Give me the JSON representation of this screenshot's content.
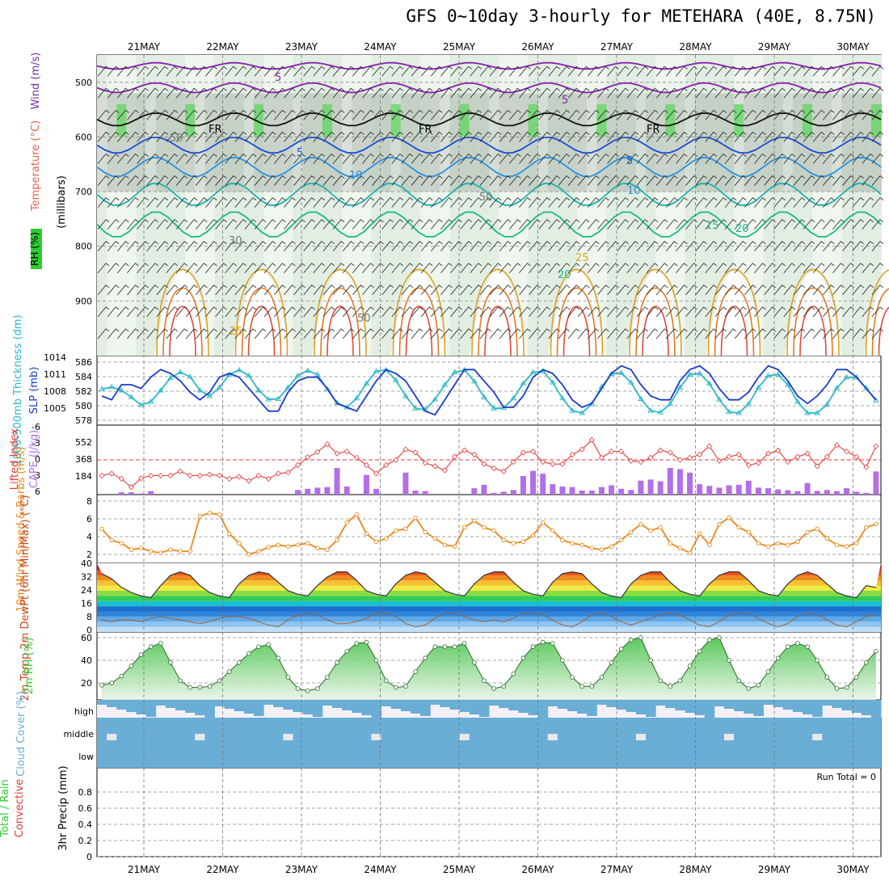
{
  "title": "GFS 0~10day 3-hourly for METEHARA (40E, 8.75N)",
  "colors": {
    "rh": "#2ecc2e",
    "temperature": "#e8624a",
    "wind": "#7a2fa8",
    "slp": "#1a3cc8",
    "thickness": "#2fb8c8",
    "lifted_index": "#e23b3b",
    "cape": "#b46ee6",
    "wind10": "#e88a1a",
    "cloud": "#6aaed6",
    "rain": "#2ecc2e",
    "convective": "#e23b3b"
  },
  "chart_data": [
    {
      "id": "vertical",
      "type": "heatmap",
      "x": [
        "21MAY",
        "22MAY",
        "23MAY",
        "24MAY",
        "25MAY",
        "26MAY",
        "27MAY",
        "28MAY",
        "29MAY",
        "30MAY"
      ],
      "yticks": [
        "500",
        "600",
        "700",
        "800",
        "900"
      ],
      "ylim": [
        1000,
        450
      ],
      "ylabel_parts": [
        "RH (%)",
        "Temperature (°C)",
        "Wind (m/s)",
        "(millibars)"
      ],
      "contour_labels": [
        "5",
        "5",
        "FR",
        "FR",
        "FR",
        "5",
        "5",
        "10",
        "10",
        "50",
        "50",
        "15",
        "20",
        "25",
        "20",
        "25",
        "30",
        "50"
      ],
      "freezing_level_label": "FR"
    },
    {
      "id": "slp_thickness",
      "type": "line",
      "y_left_ticks": [
        "586",
        "584",
        "582",
        "580",
        "578"
      ],
      "y_right_ticks": [
        "1014",
        "1011",
        "1008",
        "1005"
      ],
      "ylabel_left": "1000-500mb Thickness (dm)",
      "ylabel_right": "SLP (mb)",
      "series": [
        {
          "name": "SLP",
          "values": [
            1006,
            1005,
            1009,
            1009,
            1008,
            1011,
            1013,
            1012,
            1010,
            1007,
            1005,
            1007,
            1011,
            1012,
            1011,
            1008,
            1005,
            1002,
            1002,
            1007,
            1010,
            1011,
            1011,
            1008,
            1004,
            1003,
            1002,
            1006,
            1010,
            1013,
            1012,
            1010,
            1006,
            1002,
            1001,
            1005,
            1009,
            1013,
            1013,
            1010,
            1007,
            1003,
            1003,
            1006,
            1011,
            1013,
            1012,
            1009,
            1005,
            1003,
            1004,
            1008,
            1012,
            1014,
            1013,
            1009,
            1006,
            1005,
            1005,
            1010,
            1013,
            1014,
            1012,
            1008,
            1005,
            1005,
            1007,
            1011,
            1014,
            1013,
            1010,
            1006,
            1004,
            1006,
            1009,
            1013,
            1013,
            1011,
            1008,
            1005
          ]
        },
        {
          "name": "Thickness",
          "values": [
            582.2,
            582.6,
            582.0,
            580.8,
            579.4,
            580.0,
            582.0,
            584.2,
            585.2,
            584.4,
            582.0,
            581.0,
            582.5,
            584.8,
            585.6,
            584.6,
            582.0,
            580.4,
            580.5,
            582.5,
            584.6,
            585.5,
            584.8,
            582.2,
            579.8,
            579.0,
            580.6,
            583.2,
            585.4,
            585.6,
            583.8,
            581.0,
            578.8,
            578.6,
            580.4,
            583.0,
            585.2,
            585.6,
            583.6,
            580.8,
            578.8,
            578.9,
            580.6,
            583.2,
            585.2,
            585.4,
            583.4,
            580.6,
            578.4,
            578.0,
            579.6,
            582.6,
            584.9,
            585.1,
            583.4,
            580.5,
            578.4,
            578.1,
            579.6,
            582.5,
            584.8,
            585.0,
            583.2,
            580.4,
            578.2,
            578.0,
            579.6,
            582.5,
            584.6,
            584.8,
            583.0,
            580.0,
            578.0,
            578.0,
            579.5,
            582.4,
            584.3,
            584.3,
            582.4,
            580.2
          ]
        }
      ]
    },
    {
      "id": "li_cape",
      "type": "bar",
      "y_left_ticks": [
        "-6",
        "-3",
        "0",
        "3",
        "6"
      ],
      "y_right_ticks": [
        "552",
        "368",
        "184"
      ],
      "ylabel_left": "Lifted Index",
      "ylabel_right": "CAPE (J/kg)",
      "series": [
        {
          "name": "Lifted Index",
          "values": [
            3,
            2.6,
            3.6,
            5.2,
            3.5,
            3,
            3,
            3,
            2.2,
            3,
            3,
            2.8,
            3,
            3.6,
            3.2,
            4,
            3,
            3.6,
            2.6,
            2.4,
            1,
            -0.5,
            -1.5,
            -3,
            -1.2,
            -1.6,
            -0.4,
            1,
            2.6,
            1,
            0,
            -2,
            -1.4,
            0.6,
            1.2,
            2,
            -0.6,
            -1.8,
            -1,
            0.8,
            1.6,
            2.2,
            0.4,
            -1.4,
            -1.6,
            0.4,
            0.8,
            0.8,
            -1,
            -2,
            -3.8,
            -0.4,
            -1.6,
            -1.6,
            0.2,
            0.4,
            -0.4,
            -1.8,
            -1.4,
            0,
            -0.4,
            -1,
            -2.6,
            0.2,
            -0.6,
            -1,
            1,
            0.6,
            -1.2,
            -1.8,
            0.4,
            -0.6,
            -1.2,
            1.2,
            -0.6,
            -2.8,
            -1.6,
            -0.6,
            1.4,
            -2.6
          ]
        },
        {
          "name": "CAPE",
          "values": [
            0,
            0,
            20,
            20,
            10,
            30,
            0,
            0,
            0,
            0,
            0,
            0,
            0,
            0,
            0,
            0,
            0,
            0,
            0,
            0,
            40,
            50,
            60,
            65,
            230,
            70,
            0,
            170,
            50,
            0,
            0,
            190,
            35,
            30,
            0,
            0,
            0,
            0,
            55,
            85,
            15,
            25,
            40,
            160,
            205,
            180,
            90,
            70,
            65,
            35,
            35,
            65,
            80,
            50,
            40,
            120,
            130,
            115,
            230,
            220,
            190,
            90,
            75,
            60,
            80,
            85,
            120,
            60,
            55,
            45,
            38,
            30,
            100,
            32,
            40,
            30,
            55,
            25,
            15,
            200
          ]
        }
      ]
    },
    {
      "id": "wind10",
      "type": "line",
      "yticks": [
        "8",
        "6",
        "4",
        "2"
      ],
      "ylabel": "10m Wind Speed & Barbs (m/s)",
      "series": [
        {
          "name": "10m Wind",
          "values": [
            5,
            3.6,
            3.2,
            2.4,
            2.6,
            2.2,
            2.0,
            2.4,
            2.2,
            2.2,
            6.6,
            7.0,
            6.8,
            4.4,
            3.2,
            1.8,
            2.2,
            2.7,
            3.0,
            2.8,
            3.0,
            3.2,
            2.6,
            2.4,
            3.6,
            5.8,
            6.8,
            4.4,
            3.4,
            3.8,
            4.8,
            5.0,
            6.4,
            4.6,
            3.8,
            3.0,
            2.8,
            5.2,
            6.0,
            5.2,
            4.8,
            3.6,
            3.2,
            3.4,
            4.2,
            5.8,
            4.8,
            3.6,
            3.2,
            3.0,
            2.6,
            2.4,
            2.8,
            3.6,
            4.6,
            5.6,
            4.8,
            5.2,
            3.2,
            2.6,
            2.0,
            4.4,
            3.0,
            5.6,
            6.4,
            5.2,
            4.6,
            3.2,
            2.8,
            3.2,
            3.0,
            3.4,
            4.6,
            5.0,
            3.8,
            3.0,
            2.8,
            3.2,
            5.2,
            5.6
          ]
        }
      ]
    },
    {
      "id": "temp_dew",
      "type": "area",
      "yticks": [
        "40",
        "32",
        "24",
        "16",
        "8",
        "0"
      ],
      "ylabel": "2m Temp 2m DewPt (6hr Min/Max) (°C)",
      "series": [
        {
          "name": "2m Temp",
          "values": [
            34,
            31,
            26,
            23,
            21,
            20,
            27,
            33,
            35,
            33,
            27,
            23,
            21,
            20,
            28,
            33,
            35,
            34,
            29,
            24,
            22,
            21,
            27,
            32,
            35,
            35,
            30,
            24,
            22,
            21,
            28,
            33,
            35,
            34,
            29,
            24,
            22,
            21,
            28,
            33,
            35,
            35,
            29,
            24,
            22,
            21,
            29,
            34,
            35,
            34,
            28,
            23,
            21,
            20,
            28,
            33,
            35,
            35,
            29,
            24,
            22,
            21,
            28,
            33,
            35,
            35,
            30,
            24,
            22,
            21,
            28,
            33,
            35,
            33,
            28,
            23,
            21,
            20,
            27,
            26
          ]
        },
        {
          "name": "2m DewPt",
          "values": [
            7,
            6,
            7,
            7,
            6,
            8,
            9,
            8,
            7,
            6,
            5,
            6,
            8,
            9,
            9,
            8,
            6,
            4,
            3,
            7,
            10,
            11,
            10,
            7,
            5,
            5,
            6,
            8,
            11,
            11,
            9,
            5,
            3,
            4,
            8,
            11,
            11,
            9,
            7,
            6,
            7,
            6,
            8,
            11,
            11,
            10,
            7,
            4,
            3,
            6,
            10,
            11,
            9,
            6,
            4,
            6,
            8,
            10,
            11,
            10,
            7,
            4,
            3,
            6,
            10,
            11,
            11,
            8,
            5,
            3,
            5,
            9,
            11,
            10,
            7,
            4,
            3,
            6,
            9,
            10
          ]
        }
      ]
    },
    {
      "id": "rh2m",
      "type": "area",
      "yticks": [
        "60",
        "40",
        "20"
      ],
      "ylabel": "2m RH (%)",
      "series": [
        {
          "name": "2m RH",
          "values": [
            18,
            20,
            26,
            35,
            45,
            52,
            55,
            38,
            22,
            16,
            16,
            17,
            22,
            30,
            38,
            46,
            52,
            54,
            42,
            25,
            15,
            13,
            15,
            25,
            38,
            48,
            55,
            56,
            40,
            22,
            16,
            17,
            30,
            42,
            52,
            52,
            52,
            55,
            38,
            22,
            15,
            17,
            28,
            42,
            52,
            56,
            55,
            40,
            25,
            17,
            17,
            25,
            38,
            50,
            58,
            60,
            40,
            22,
            17,
            22,
            35,
            48,
            58,
            60,
            40,
            22,
            15,
            18,
            30,
            42,
            52,
            55,
            52,
            40,
            25,
            15,
            16,
            25,
            38,
            48
          ]
        }
      ]
    },
    {
      "id": "cloud",
      "type": "area",
      "yticks": [
        "high",
        "middle",
        "low"
      ],
      "ylabel": "Cloud Cover (%)"
    },
    {
      "id": "precip",
      "type": "bar",
      "yticks": [
        "0.8",
        "0.6",
        "0.4",
        "0.2",
        "0"
      ],
      "ylim": [
        0,
        1
      ],
      "ylabel_parts": [
        "Total / Rain",
        "Convective",
        "3hr Precip (mm)"
      ],
      "run_total": "Run Total = 0",
      "values": []
    }
  ]
}
